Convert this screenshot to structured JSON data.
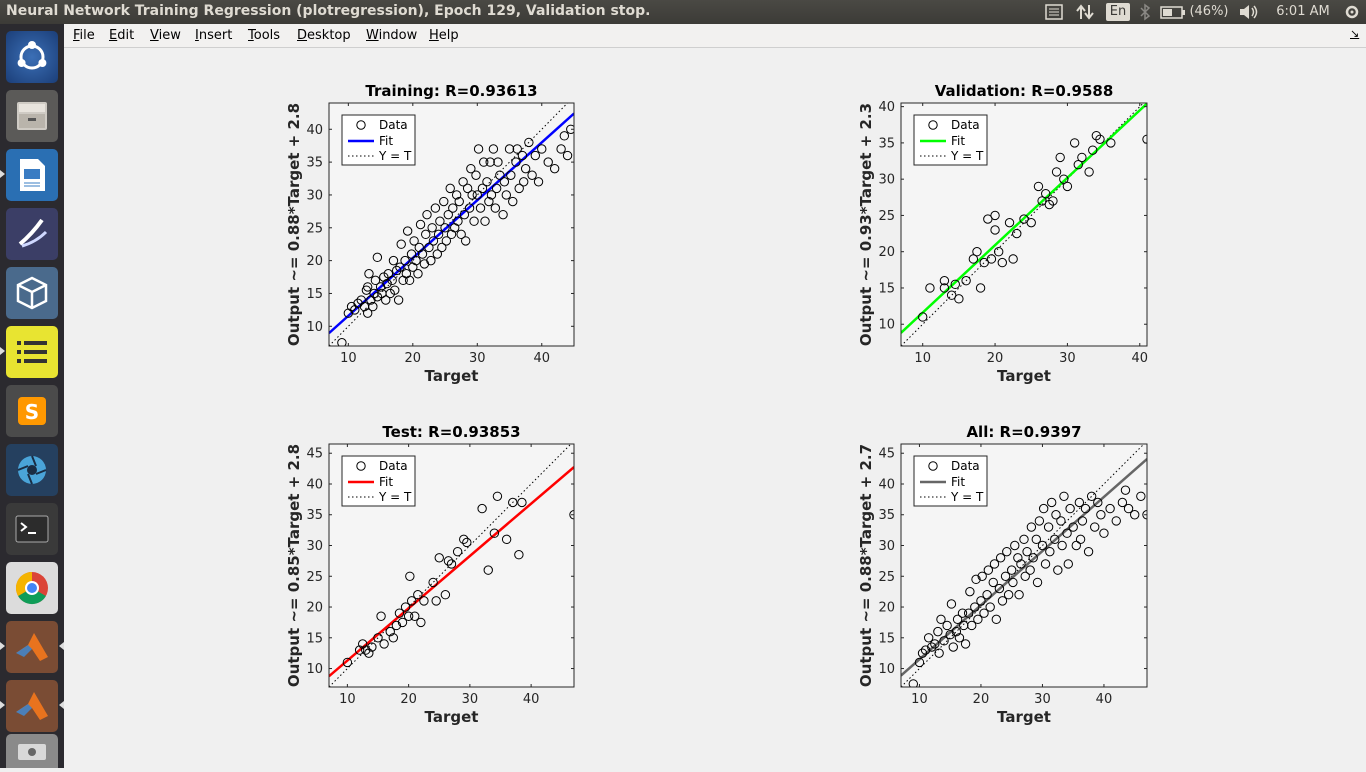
{
  "window": {
    "title": "Neural Network Training Regression (plotregression), Epoch 129, Validation stop."
  },
  "tray": {
    "keyboard": "En",
    "battery": "(46%)",
    "clock": "6:01 AM"
  },
  "menu": [
    "File",
    "Edit",
    "View",
    "Insert",
    "Tools",
    "Desktop",
    "Window",
    "Help"
  ],
  "launcher": [
    {
      "icon": "ubuntu-dash-icon"
    },
    {
      "icon": "files-icon"
    },
    {
      "icon": "libreoffice-writer-icon"
    },
    {
      "icon": "libreoffice-impress-icon"
    },
    {
      "icon": "virtualbox-icon"
    },
    {
      "icon": "notes-icon"
    },
    {
      "icon": "sublime-text-icon"
    },
    {
      "icon": "shutter-icon"
    },
    {
      "icon": "terminal-icon"
    },
    {
      "icon": "chrome-icon"
    },
    {
      "icon": "matlab-icon"
    },
    {
      "icon": "matlab-icon"
    },
    {
      "icon": "drive-icon"
    }
  ],
  "chart_data": [
    {
      "type": "scatter",
      "title": "Training: R=0.93613",
      "xlabel": "Target",
      "ylabel": "Output ~= 0.88*Target + 2.8",
      "xlim": [
        7,
        45
      ],
      "ylim": [
        7,
        44
      ],
      "xticks": [
        10,
        20,
        30,
        40
      ],
      "yticks": [
        10,
        15,
        20,
        25,
        30,
        35,
        40
      ],
      "fit": {
        "slope": 0.88,
        "intercept": 2.8,
        "color": "#0000ff"
      },
      "legend": {
        "position": "top-left",
        "entries": [
          "Data",
          "Fit",
          "Y = T"
        ]
      },
      "grid": false,
      "points": [
        [
          9,
          7.5
        ],
        [
          10,
          12
        ],
        [
          10.5,
          13
        ],
        [
          11,
          12.5
        ],
        [
          11.5,
          13.5
        ],
        [
          12,
          14
        ],
        [
          12.5,
          13
        ],
        [
          12.8,
          15.5
        ],
        [
          13,
          16
        ],
        [
          13,
          12
        ],
        [
          13.2,
          18
        ],
        [
          13.5,
          14
        ],
        [
          13.8,
          13
        ],
        [
          14,
          15
        ],
        [
          14.2,
          17
        ],
        [
          14.5,
          20.5
        ],
        [
          14.5,
          14.5
        ],
        [
          15,
          16
        ],
        [
          15.2,
          15
        ],
        [
          15.5,
          17.5
        ],
        [
          15.8,
          14
        ],
        [
          16,
          16.5
        ],
        [
          16.2,
          18
        ],
        [
          16.5,
          15
        ],
        [
          16.8,
          17
        ],
        [
          17,
          20
        ],
        [
          17.2,
          15.5
        ],
        [
          17.5,
          18.5
        ],
        [
          17.8,
          14
        ],
        [
          18,
          19
        ],
        [
          18.2,
          22.5
        ],
        [
          18.5,
          17
        ],
        [
          18.8,
          20
        ],
        [
          19,
          18
        ],
        [
          19.2,
          24.5
        ],
        [
          19.5,
          17
        ],
        [
          19.8,
          21
        ],
        [
          20,
          19
        ],
        [
          20.2,
          23
        ],
        [
          20.5,
          20
        ],
        [
          20.8,
          18
        ],
        [
          21,
          22
        ],
        [
          21.2,
          25.5
        ],
        [
          21.5,
          21
        ],
        [
          21.8,
          19.5
        ],
        [
          22,
          24
        ],
        [
          22.2,
          27
        ],
        [
          22.5,
          22
        ],
        [
          22.8,
          20
        ],
        [
          23,
          25
        ],
        [
          23.2,
          23
        ],
        [
          23.5,
          28
        ],
        [
          23.8,
          21
        ],
        [
          24,
          24
        ],
        [
          24.2,
          26
        ],
        [
          24.5,
          22
        ],
        [
          24.8,
          29
        ],
        [
          25,
          25
        ],
        [
          25.2,
          23
        ],
        [
          25.5,
          27
        ],
        [
          25.8,
          31
        ],
        [
          26,
          24
        ],
        [
          26.2,
          28
        ],
        [
          26.5,
          25
        ],
        [
          26.8,
          30
        ],
        [
          27,
          26
        ],
        [
          27.2,
          29
        ],
        [
          27.5,
          24
        ],
        [
          27.8,
          32
        ],
        [
          28,
          27
        ],
        [
          28.2,
          23
        ],
        [
          28.5,
          31
        ],
        [
          28.8,
          28
        ],
        [
          29,
          34
        ],
        [
          29.2,
          30
        ],
        [
          29.5,
          26
        ],
        [
          29.8,
          33
        ],
        [
          30,
          30
        ],
        [
          30.2,
          37
        ],
        [
          30.5,
          28
        ],
        [
          30.8,
          31
        ],
        [
          31,
          35
        ],
        [
          31.2,
          26
        ],
        [
          31.5,
          32
        ],
        [
          31.8,
          29
        ],
        [
          32,
          35
        ],
        [
          32.2,
          30
        ],
        [
          32.5,
          37
        ],
        [
          32.8,
          28
        ],
        [
          33,
          31
        ],
        [
          33.2,
          35
        ],
        [
          33.5,
          33
        ],
        [
          34,
          27
        ],
        [
          34.2,
          32
        ],
        [
          34.5,
          30
        ],
        [
          35,
          37
        ],
        [
          35.2,
          33
        ],
        [
          35.5,
          29
        ],
        [
          36,
          35
        ],
        [
          36.2,
          37
        ],
        [
          36.5,
          31
        ],
        [
          37,
          36
        ],
        [
          37.2,
          32
        ],
        [
          37.5,
          34
        ],
        [
          38,
          38
        ],
        [
          38.5,
          33
        ],
        [
          39,
          36
        ],
        [
          39.5,
          32
        ],
        [
          40,
          37
        ],
        [
          41,
          35
        ],
        [
          42,
          34
        ],
        [
          43,
          37
        ],
        [
          43.5,
          39
        ],
        [
          44,
          36
        ],
        [
          44.5,
          40
        ]
      ]
    },
    {
      "type": "scatter",
      "title": "Validation: R=0.9588",
      "xlabel": "Target",
      "ylabel": "Output ~= 0.93*Target + 2.3",
      "xlim": [
        7,
        41
      ],
      "ylim": [
        7,
        40.5
      ],
      "xticks": [
        10,
        20,
        30,
        40
      ],
      "yticks": [
        10,
        15,
        20,
        25,
        30,
        35,
        40
      ],
      "fit": {
        "slope": 0.93,
        "intercept": 2.3,
        "color": "#00ff00"
      },
      "legend": {
        "position": "top-left",
        "entries": [
          "Data",
          "Fit",
          "Y = T"
        ]
      },
      "grid": false,
      "points": [
        [
          10,
          11
        ],
        [
          11,
          15
        ],
        [
          13,
          16
        ],
        [
          13,
          15
        ],
        [
          14,
          14
        ],
        [
          14.5,
          15.5
        ],
        [
          15,
          13.5
        ],
        [
          16,
          16
        ],
        [
          17,
          19
        ],
        [
          17.5,
          20
        ],
        [
          18,
          15
        ],
        [
          18.5,
          18.5
        ],
        [
          19,
          24.5
        ],
        [
          19.5,
          19
        ],
        [
          20,
          23
        ],
        [
          20,
          25
        ],
        [
          20.5,
          20
        ],
        [
          21,
          18.5
        ],
        [
          22,
          24
        ],
        [
          22.5,
          19
        ],
        [
          23,
          22.5
        ],
        [
          24,
          24.5
        ],
        [
          25,
          24
        ],
        [
          26,
          29
        ],
        [
          26.5,
          27
        ],
        [
          27,
          28
        ],
        [
          27.5,
          26.5
        ],
        [
          28,
          27
        ],
        [
          28.5,
          31
        ],
        [
          29,
          33
        ],
        [
          29.5,
          30
        ],
        [
          30,
          29
        ],
        [
          31,
          35
        ],
        [
          31.5,
          32
        ],
        [
          32,
          33
        ],
        [
          33,
          31
        ],
        [
          33.5,
          34
        ],
        [
          34,
          36
        ],
        [
          34.5,
          35.5
        ],
        [
          36,
          35
        ],
        [
          41,
          35.5
        ]
      ]
    },
    {
      "type": "scatter",
      "title": "Test: R=0.93853",
      "xlabel": "Target",
      "ylabel": "Output ~= 0.85*Target + 2.8",
      "xlim": [
        7,
        47
      ],
      "ylim": [
        7,
        46.5
      ],
      "xticks": [
        10,
        20,
        30,
        40
      ],
      "yticks": [
        10,
        15,
        20,
        25,
        30,
        35,
        40,
        45
      ],
      "fit": {
        "slope": 0.85,
        "intercept": 2.8,
        "color": "#ff0000"
      },
      "legend": {
        "position": "top-left",
        "entries": [
          "Data",
          "Fit",
          "Y = T"
        ]
      },
      "grid": false,
      "points": [
        [
          10,
          11
        ],
        [
          12,
          13
        ],
        [
          12.5,
          14
        ],
        [
          13,
          13
        ],
        [
          13.5,
          12.5
        ],
        [
          14,
          13.5
        ],
        [
          15,
          15
        ],
        [
          15.5,
          18.5
        ],
        [
          16,
          14
        ],
        [
          17,
          16
        ],
        [
          17.5,
          15
        ],
        [
          18,
          17
        ],
        [
          18.5,
          19
        ],
        [
          19,
          17.5
        ],
        [
          19.5,
          20
        ],
        [
          20,
          18.5
        ],
        [
          20.2,
          25
        ],
        [
          20.5,
          21
        ],
        [
          21,
          18.5
        ],
        [
          21.5,
          22
        ],
        [
          22,
          17.5
        ],
        [
          22.5,
          21
        ],
        [
          24,
          24
        ],
        [
          24.5,
          21
        ],
        [
          25,
          28
        ],
        [
          26,
          22
        ],
        [
          26.5,
          27.5
        ],
        [
          27,
          27
        ],
        [
          28,
          29
        ],
        [
          29,
          31
        ],
        [
          29.5,
          30.5
        ],
        [
          32,
          36
        ],
        [
          33,
          26
        ],
        [
          34,
          32
        ],
        [
          34.5,
          38
        ],
        [
          36,
          31
        ],
        [
          37,
          37
        ],
        [
          38,
          28.5
        ],
        [
          38.5,
          37
        ],
        [
          47,
          35
        ]
      ]
    },
    {
      "type": "scatter",
      "title": "All: R=0.9397",
      "xlabel": "Target",
      "ylabel": "Output ~= 0.88*Target + 2.7",
      "xlim": [
        7,
        47
      ],
      "ylim": [
        7,
        46.5
      ],
      "xticks": [
        10,
        20,
        30,
        40
      ],
      "yticks": [
        10,
        15,
        20,
        25,
        30,
        35,
        40,
        45
      ],
      "fit": {
        "slope": 0.88,
        "intercept": 2.7,
        "color": "#666666"
      },
      "legend": {
        "position": "top-left",
        "entries": [
          "Data",
          "Fit",
          "Y = T"
        ]
      },
      "grid": false,
      "points": [
        [
          9,
          7.5
        ],
        [
          10,
          11
        ],
        [
          10.5,
          12.5
        ],
        [
          11,
          13
        ],
        [
          11.5,
          15
        ],
        [
          12,
          13.5
        ],
        [
          12.5,
          14
        ],
        [
          13,
          16
        ],
        [
          13.2,
          12.5
        ],
        [
          13.5,
          18
        ],
        [
          14,
          14.5
        ],
        [
          14.5,
          17
        ],
        [
          15,
          15.5
        ],
        [
          15.2,
          20.5
        ],
        [
          15.5,
          13.5
        ],
        [
          16,
          16
        ],
        [
          16.2,
          18
        ],
        [
          16.5,
          15
        ],
        [
          17,
          19
        ],
        [
          17.2,
          17
        ],
        [
          17.5,
          14
        ],
        [
          18,
          19
        ],
        [
          18.2,
          22.5
        ],
        [
          18.5,
          17
        ],
        [
          19,
          20
        ],
        [
          19.2,
          24.5
        ],
        [
          19.5,
          18
        ],
        [
          20,
          21
        ],
        [
          20.2,
          25
        ],
        [
          20.5,
          19
        ],
        [
          21,
          22
        ],
        [
          21.2,
          26
        ],
        [
          21.5,
          20
        ],
        [
          22,
          24
        ],
        [
          22.2,
          27
        ],
        [
          22.5,
          18
        ],
        [
          23,
          23
        ],
        [
          23.2,
          28
        ],
        [
          23.5,
          21
        ],
        [
          24,
          25
        ],
        [
          24.2,
          29
        ],
        [
          24.5,
          22
        ],
        [
          25,
          26
        ],
        [
          25.2,
          24
        ],
        [
          25.5,
          30
        ],
        [
          26,
          28
        ],
        [
          26.2,
          22
        ],
        [
          26.5,
          27
        ],
        [
          27,
          31
        ],
        [
          27.2,
          25
        ],
        [
          27.5,
          29
        ],
        [
          28,
          26
        ],
        [
          28.2,
          33
        ],
        [
          28.5,
          28
        ],
        [
          29,
          31
        ],
        [
          29.2,
          24
        ],
        [
          29.5,
          34
        ],
        [
          30,
          30
        ],
        [
          30.2,
          36
        ],
        [
          30.5,
          27
        ],
        [
          31,
          33
        ],
        [
          31.2,
          29
        ],
        [
          31.5,
          37
        ],
        [
          32,
          31
        ],
        [
          32.2,
          35
        ],
        [
          32.5,
          26
        ],
        [
          33,
          34
        ],
        [
          33.2,
          30
        ],
        [
          33.5,
          38
        ],
        [
          34,
          32
        ],
        [
          34.2,
          27
        ],
        [
          34.5,
          36
        ],
        [
          35,
          33
        ],
        [
          35.5,
          30
        ],
        [
          36,
          37
        ],
        [
          36.2,
          31
        ],
        [
          36.5,
          34
        ],
        [
          37,
          36
        ],
        [
          37.5,
          29
        ],
        [
          38,
          38
        ],
        [
          38.5,
          33
        ],
        [
          39,
          37
        ],
        [
          39.5,
          35
        ],
        [
          40,
          32
        ],
        [
          41,
          36
        ],
        [
          42,
          34
        ],
        [
          43,
          37
        ],
        [
          43.5,
          39
        ],
        [
          44,
          36
        ],
        [
          45,
          35
        ],
        [
          46,
          38
        ],
        [
          47,
          35
        ]
      ]
    }
  ]
}
